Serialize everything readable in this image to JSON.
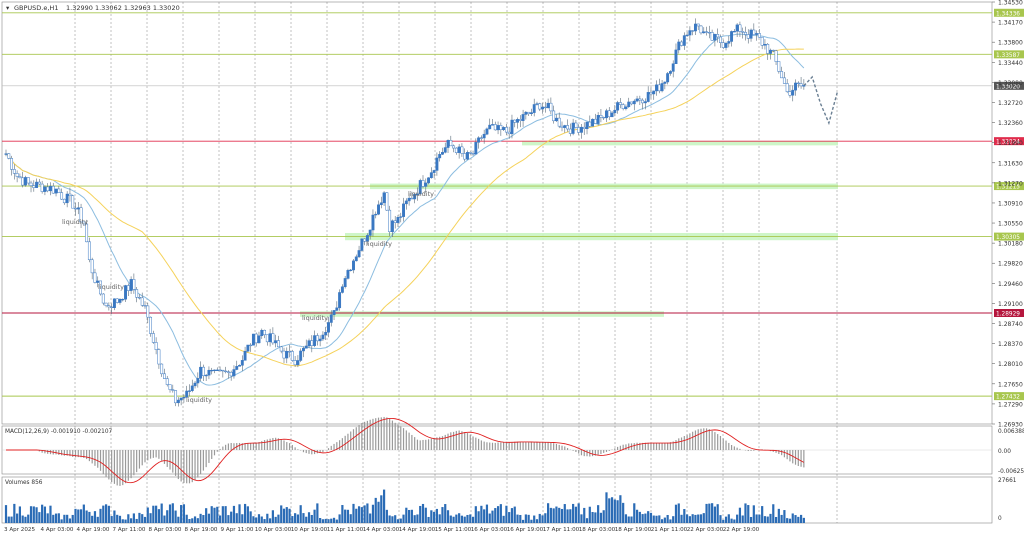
{
  "window": {
    "title": "GBPUSD.e,H1",
    "ohlc": "1.32990 1.33062 1.32963 1.33020"
  },
  "chart_data": [
    {
      "type": "line",
      "subtype": "candlestick",
      "symbol": "GBPUSD.e",
      "timeframe": "H1",
      "ylim": [
        1.2693,
        1.3453
      ],
      "yticks": [
        "1.34530",
        "1.34170",
        "1.33800",
        "1.33440",
        "1.33080",
        "1.32720",
        "1.32360",
        "1.31990",
        "1.31630",
        "1.31270",
        "1.30910",
        "1.30550",
        "1.30180",
        "1.29820",
        "1.29460",
        "1.29100",
        "1.28740",
        "1.28370",
        "1.28010",
        "1.27650",
        "1.27290",
        "1.26930"
      ],
      "xticks": [
        "3 Apr 2025",
        "4 Apr 03:00",
        "4 Apr 19:00",
        "7 Apr 11:00",
        "8 Apr 03:00",
        "8 Apr 19:00",
        "9 Apr 11:00",
        "10 Apr 03:00",
        "10 Apr 19:00",
        "11 Apr 11:00",
        "14 Apr 03:00",
        "14 Apr 19:00",
        "15 Apr 11:00",
        "16 Apr 03:00",
        "16 Apr 19:00",
        "17 Apr 11:00",
        "18 Apr 03:00",
        "18 Apr 19:00",
        "21 Apr 11:00",
        "22 Apr 03:00",
        "22 Apr 19:00"
      ],
      "grid": true,
      "price_path": [
        [
          0,
          1.318
        ],
        [
          4,
          1.314
        ],
        [
          8,
          1.3125
        ],
        [
          14,
          1.312
        ],
        [
          18,
          1.3115
        ],
        [
          20,
          1.3105
        ],
        [
          24,
          1.309
        ],
        [
          28,
          1.3055
        ],
        [
          30,
          1.2985
        ],
        [
          33,
          1.294
        ],
        [
          36,
          1.2905
        ],
        [
          40,
          1.2915
        ],
        [
          45,
          1.2945
        ],
        [
          50,
          1.29
        ],
        [
          55,
          1.281
        ],
        [
          58,
          1.276
        ],
        [
          61,
          1.2735
        ],
        [
          65,
          1.2745
        ],
        [
          70,
          1.279
        ],
        [
          75,
          1.278
        ],
        [
          80,
          1.2785
        ],
        [
          85,
          1.281
        ],
        [
          88,
          1.284
        ],
        [
          92,
          1.286
        ],
        [
          96,
          1.284
        ],
        [
          100,
          1.282
        ],
        [
          104,
          1.281
        ],
        [
          108,
          1.283
        ],
        [
          112,
          1.285
        ],
        [
          116,
          1.2875
        ],
        [
          118,
          1.289
        ],
        [
          121,
          1.295
        ],
        [
          124,
          1.298
        ],
        [
          127,
          1.301
        ],
        [
          130,
          1.304
        ],
        [
          133,
          1.308
        ],
        [
          136,
          1.311
        ],
        [
          138,
          1.305
        ],
        [
          141,
          1.306
        ],
        [
          144,
          1.309
        ],
        [
          147,
          1.311
        ],
        [
          150,
          1.313
        ],
        [
          153,
          1.315
        ],
        [
          156,
          1.318
        ],
        [
          159,
          1.3195
        ],
        [
          162,
          1.319
        ],
        [
          165,
          1.317
        ],
        [
          168,
          1.318
        ],
        [
          171,
          1.321
        ],
        [
          174,
          1.3225
        ],
        [
          177,
          1.322
        ],
        [
          180,
          1.322
        ],
        [
          183,
          1.3235
        ],
        [
          186,
          1.3245
        ],
        [
          189,
          1.3255
        ],
        [
          192,
          1.327
        ],
        [
          195,
          1.326
        ],
        [
          198,
          1.324
        ],
        [
          201,
          1.323
        ],
        [
          204,
          1.3225
        ],
        [
          207,
          1.323
        ],
        [
          210,
          1.3235
        ],
        [
          213,
          1.324
        ],
        [
          216,
          1.325
        ],
        [
          219,
          1.326
        ],
        [
          222,
          1.327
        ],
        [
          225,
          1.3275
        ],
        [
          228,
          1.328
        ],
        [
          231,
          1.3285
        ],
        [
          234,
          1.3295
        ],
        [
          237,
          1.3315
        ],
        [
          240,
          1.335
        ],
        [
          243,
          1.3385
        ],
        [
          246,
          1.3405
        ],
        [
          249,
          1.341
        ],
        [
          252,
          1.339
        ],
        [
          255,
          1.3385
        ],
        [
          258,
          1.338
        ],
        [
          261,
          1.3395
        ],
        [
          264,
          1.3405
        ],
        [
          267,
          1.3395
        ],
        [
          270,
          1.339
        ],
        [
          273,
          1.3375
        ],
        [
          276,
          1.3355
        ],
        [
          279,
          1.332
        ],
        [
          281,
          1.329
        ],
        [
          284,
          1.33
        ],
        [
          287,
          1.3302
        ]
      ],
      "projection": [
        [
          287,
          1.3302
        ],
        [
          290,
          1.3318
        ],
        [
          293,
          1.327
        ],
        [
          296,
          1.3235
        ],
        [
          299,
          1.329
        ]
      ],
      "ma_fast": {
        "color": "#8cbde0"
      },
      "ma_slow": {
        "color": "#f5d25a"
      },
      "horizontal_levels": [
        {
          "price": "1.34336",
          "color": "#a8c64e"
        },
        {
          "price": "1.33587",
          "color": "#a8c64e"
        },
        {
          "price": "1.32024",
          "color": "#e02c4c"
        },
        {
          "price": "1.31215",
          "color": "#a8c64e"
        },
        {
          "price": "1.30305",
          "color": "#a8c64e"
        },
        {
          "price": "1.28929",
          "color": "#b5163d"
        },
        {
          "price": "1.27432",
          "color": "#a8c64e"
        }
      ],
      "current_price": "1.33020",
      "annotations": [
        "liquidity",
        "liquidity",
        "liquidity",
        "liquidity",
        "liquidity",
        "liquidity"
      ],
      "zones": [
        {
          "from": 1.3196,
          "to": 1.3202,
          "color": "#c9f5c2"
        },
        {
          "from": 1.3116,
          "to": 1.3126,
          "color": "#c9f5c2"
        },
        {
          "from": 1.3024,
          "to": 1.3037,
          "color": "#c9f5c2"
        },
        {
          "from": 1.2886,
          "to": 1.2896,
          "color": "#c9f5c2"
        }
      ]
    },
    {
      "type": "bar",
      "name": "MACD(12,26,9) -0.001910 -0.002107",
      "yticks": [
        "0.006388",
        "0.00",
        "-0.006255"
      ],
      "signal_color": "#e02020"
    },
    {
      "type": "bar",
      "name": "Volumes 856",
      "yticks": [
        "27661",
        "0"
      ],
      "bar_color": "#2a6bb5"
    }
  ]
}
